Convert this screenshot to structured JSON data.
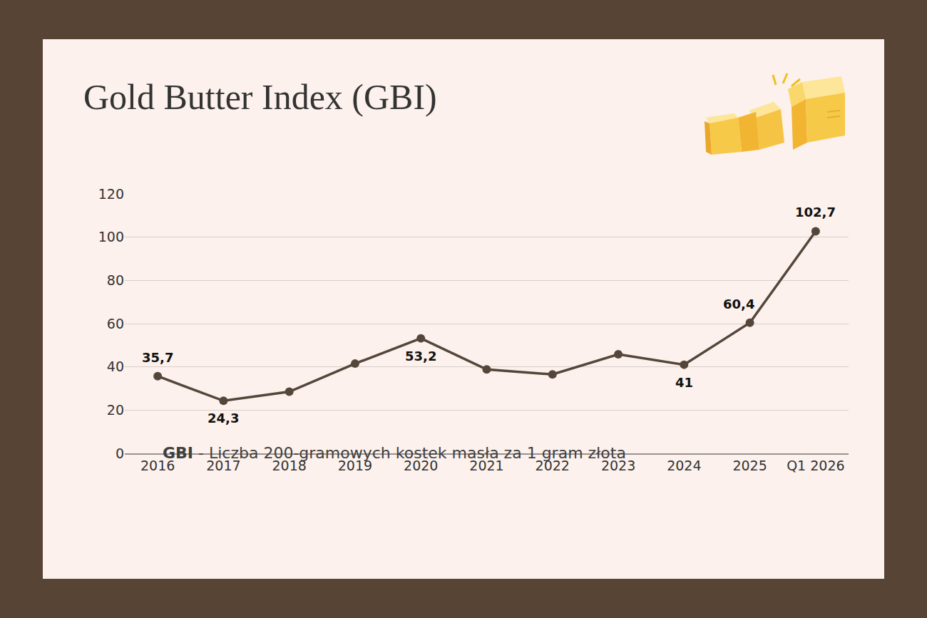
{
  "chart_data": {
    "type": "line",
    "title": "Gold Butter Index (GBI)",
    "footnote": {
      "term": "GBI",
      "text": "- Liczba 200-gramowych kostek masła za 1 gram złota"
    },
    "categories": [
      "2016",
      "2017",
      "2018",
      "2019",
      "2020",
      "2021",
      "2022",
      "2023",
      "2024",
      "2025",
      "Q1 2026"
    ],
    "values": [
      35.7,
      24.3,
      28.5,
      41.5,
      53.2,
      38.8,
      36.5,
      45.8,
      41,
      60.4,
      102.7
    ],
    "value_labels": [
      "35,7",
      "24,3",
      null,
      null,
      "53,2",
      null,
      null,
      null,
      "41",
      "60,4",
      "102,7"
    ],
    "data_labels": true,
    "color": "#54463a",
    "marker": "circle",
    "line_style": "solid",
    "ylim": [
      0,
      120
    ],
    "yticks": [
      0,
      20,
      40,
      60,
      80,
      100,
      120
    ],
    "grid": true
  }
}
